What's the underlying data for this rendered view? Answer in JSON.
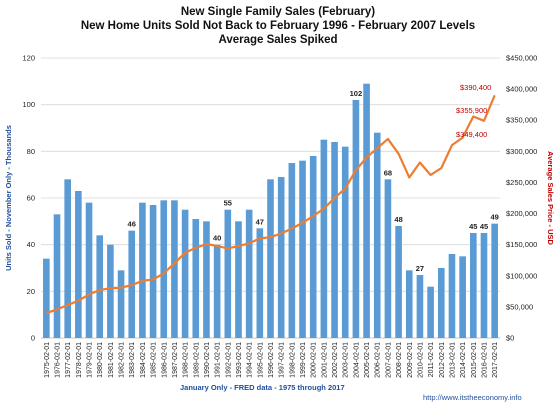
{
  "chart_data": {
    "type": "bar",
    "title": [
      "New Single Family Sales (February)",
      "New Home Units Sold Not Back to February  1996 - February 2007 Levels",
      "Average Sales Spiked"
    ],
    "xlabel": "January Only - FRED data - 1975 through 2017",
    "ylabel": "Units Sold - November  Only - Thousands",
    "y2label": "Average Sales Price - USD",
    "source": "http://www.itstheeconomy.info",
    "ylim": [
      0,
      120
    ],
    "yticks": [
      0,
      20,
      40,
      60,
      80,
      100,
      120
    ],
    "y2lim": [
      0,
      450000
    ],
    "y2ticks": [
      "$0",
      "$50,000",
      "$100,000",
      "$150,000",
      "$200,000",
      "$250,000",
      "$300,000",
      "$350,000",
      "$400,000",
      "$450,000"
    ],
    "grid": true,
    "categories": [
      "1975-02-01",
      "1976-02-01",
      "1977-02-01",
      "1978-02-01",
      "1979-02-01",
      "1980-02-01",
      "1981-02-01",
      "1982-02-01",
      "1983-02-01",
      "1984-02-01",
      "1985-02-01",
      "1986-02-01",
      "1987-02-01",
      "1988-02-01",
      "1989-02-01",
      "1990-02-01",
      "1991-02-01",
      "1992-02-01",
      "1993-02-01",
      "1994-02-01",
      "1995-02-01",
      "1996-02-01",
      "1997-02-01",
      "1998-02-01",
      "1999-02-01",
      "2000-02-01",
      "2001-02-01",
      "2002-02-01",
      "2003-02-01",
      "2004-02-01",
      "2005-02-01",
      "2006-02-01",
      "2007-02-01",
      "2008-02-01",
      "2009-02-01",
      "2010-02-01",
      "2011-02-01",
      "2012-02-01",
      "2013-02-01",
      "2014-02-01",
      "2015-02-01",
      "2016-02-01",
      "2017-02-01"
    ],
    "series": [
      {
        "kind": "bar",
        "axis": "left",
        "color": "#5b9bd5",
        "values": [
          34,
          53,
          68,
          63,
          58,
          44,
          40,
          29,
          46,
          58,
          57,
          59,
          59,
          55,
          51,
          50,
          40,
          55,
          50,
          55,
          47,
          68,
          69,
          75,
          76,
          78,
          85,
          84,
          82,
          102,
          109,
          88,
          68,
          48,
          29,
          27,
          22,
          30,
          36,
          35,
          45,
          45,
          49
        ],
        "labels": [
          null,
          null,
          null,
          null,
          null,
          null,
          null,
          null,
          46,
          null,
          null,
          null,
          null,
          null,
          null,
          null,
          40,
          55,
          null,
          null,
          47,
          null,
          null,
          null,
          null,
          null,
          null,
          null,
          null,
          102,
          null,
          null,
          68,
          48,
          null,
          27,
          null,
          null,
          null,
          null,
          45,
          45,
          49
        ]
      },
      {
        "kind": "line",
        "axis": "right",
        "color": "#ed7d31",
        "values": [
          40000,
          46000,
          53000,
          60000,
          70000,
          77000,
          80000,
          81000,
          85000,
          92000,
          94000,
          104000,
          120000,
          137000,
          145000,
          151000,
          148000,
          144000,
          148000,
          152000,
          160000,
          162000,
          168000,
          176000,
          185000,
          196000,
          208000,
          225000,
          240000,
          270000,
          290000,
          305000,
          320000,
          296000,
          258000,
          282000,
          262000,
          273000,
          310000,
          322000,
          356000,
          349000,
          390000
        ],
        "labels": [
          null,
          null,
          null,
          null,
          null,
          null,
          null,
          null,
          null,
          null,
          null,
          null,
          null,
          null,
          null,
          null,
          null,
          null,
          null,
          null,
          null,
          null,
          null,
          null,
          null,
          null,
          null,
          null,
          null,
          null,
          null,
          null,
          null,
          null,
          null,
          null,
          null,
          null,
          null,
          null,
          "$355,900",
          "$349,400",
          "$390,400"
        ]
      }
    ]
  }
}
